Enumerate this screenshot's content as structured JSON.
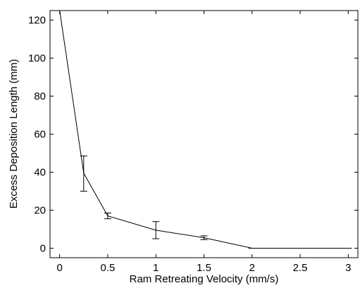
{
  "chart_data": {
    "type": "line",
    "xlabel": "Ram Retreating Velocity (mm/s)",
    "ylabel": "Excess Deposition Length (mm)",
    "xlim": [
      -0.1,
      3.1
    ],
    "ylim": [
      -5,
      125
    ],
    "xticks": [
      0,
      0.5,
      1,
      1.5,
      2,
      2.5,
      3
    ],
    "xtick_labels": [
      "0",
      "0.5",
      "1",
      "1.5",
      "2",
      "2.5",
      "3"
    ],
    "yticks": [
      0,
      20,
      40,
      60,
      80,
      100,
      120
    ],
    "ytick_labels": [
      "0",
      "20",
      "40",
      "60",
      "80",
      "100",
      "120"
    ],
    "grid": false,
    "series": [
      {
        "x": [
          0,
          0.25,
          0.5,
          1,
          1.5,
          2,
          2.5,
          3
        ],
        "y": [
          125,
          39.5,
          17,
          9.5,
          5.5,
          0,
          0,
          0
        ],
        "error_low": [
          125,
          30,
          15.5,
          5,
          4.5,
          0,
          0,
          0
        ],
        "error_high": [
          125,
          48.5,
          18.5,
          14,
          6.5,
          0,
          0,
          0
        ],
        "color": "#000000"
      }
    ]
  }
}
